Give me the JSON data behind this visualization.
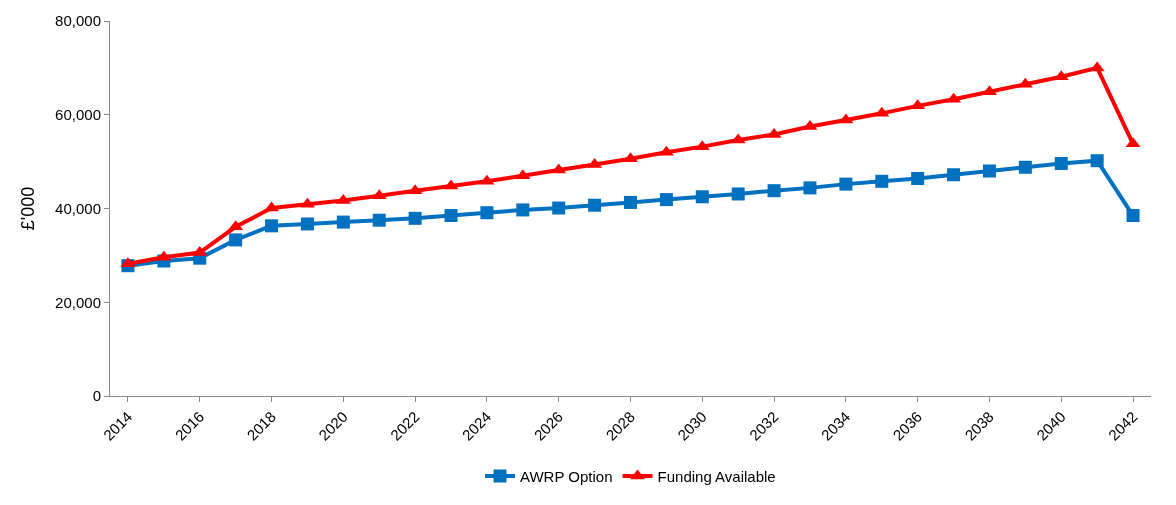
{
  "chart_data": {
    "type": "line",
    "ylabel": "£'000",
    "categories": [
      "2014",
      null,
      "2016",
      null,
      "2018",
      null,
      "2020",
      null,
      "2022",
      null,
      "2024",
      null,
      "2026",
      null,
      "2028",
      null,
      "2030",
      null,
      "2032",
      null,
      "2034",
      null,
      "2036",
      null,
      "2038",
      null,
      "2040",
      null,
      "2042"
    ],
    "ylim": [
      0,
      80000
    ],
    "yticks": [
      {
        "value": 0,
        "label": "0"
      },
      {
        "value": 20000,
        "label": "20,000"
      },
      {
        "value": 40000,
        "label": "40,000"
      },
      {
        "value": 60000,
        "label": "60,000"
      },
      {
        "value": 80000,
        "label": "80,000"
      }
    ],
    "legend": "bottom",
    "line_style": "solid",
    "series": [
      {
        "name": "AWRP Option",
        "color": "#0070c0",
        "marker": "square",
        "values": [
          27800,
          28800,
          29400,
          33300,
          36300,
          36700,
          37100,
          37500,
          37900,
          38500,
          39100,
          39700,
          40100,
          40700,
          41300,
          41900,
          42500,
          43100,
          43800,
          44400,
          45200,
          45800,
          46400,
          47200,
          48000,
          48800,
          49600,
          50200,
          38500
        ]
      },
      {
        "name": "Funding Available",
        "color": "#ff0000",
        "marker": "triangle",
        "values": [
          28200,
          29600,
          30600,
          36100,
          40100,
          40900,
          41700,
          42700,
          43800,
          44800,
          45800,
          47000,
          48200,
          49400,
          50600,
          52000,
          53200,
          54600,
          55800,
          57500,
          58900,
          60300,
          61900,
          63300,
          64900,
          66500,
          68100,
          70000,
          53800
        ]
      }
    ]
  }
}
